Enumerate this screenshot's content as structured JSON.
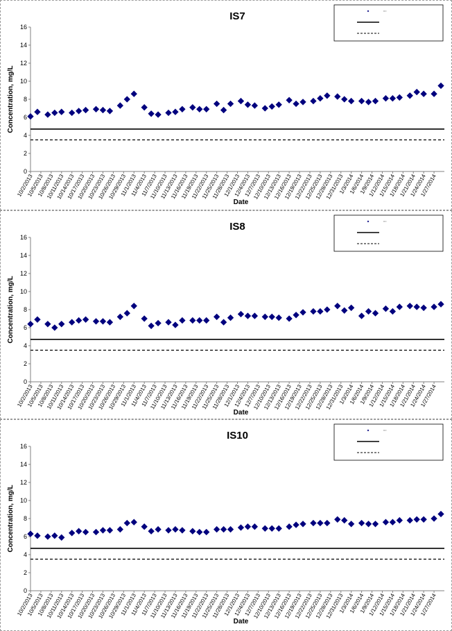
{
  "colors": {
    "marker": "#00007e",
    "line": "#000000",
    "axis": "#808080",
    "panel_border": "#9a9a9a"
  },
  "chart_data": [
    {
      "type": "scatter",
      "title": "IS7",
      "xlabel": "Date",
      "ylabel": "Concentration, mg/L",
      "ylim": [
        0,
        16
      ],
      "yticks": [
        "0",
        "2",
        "4",
        "6",
        "8",
        "10",
        "12",
        "14",
        "16"
      ],
      "xlim": [
        "2013-10-02",
        "2014-01-30"
      ],
      "xtick_labels": [
        "10/2/2013",
        "10/5/2013",
        "10/8/2013",
        "10/11/2013",
        "10/14/2013",
        "10/17/2013",
        "10/20/2013",
        "10/23/2013",
        "10/26/2013",
        "10/29/2013",
        "11/1/2013",
        "11/4/2013",
        "11/7/2013",
        "11/10/2013",
        "11/13/2013",
        "11/16/2013",
        "11/19/2013",
        "11/22/2013",
        "11/25/2013",
        "11/28/2013",
        "12/1/2013",
        "12/4/2013",
        "12/7/2013",
        "12/10/2013",
        "12/13/2013",
        "12/16/2013",
        "12/19/2013",
        "12/22/2013",
        "12/25/2013",
        "12/28/2013",
        "12/31/2013",
        "1/3/2014",
        "1/6/2014",
        "1/9/2014",
        "1/12/2014",
        "1/15/2014",
        "1/18/2014",
        "1/21/2014",
        "1/24/2014",
        "1/27/2014"
      ],
      "legend_position": "top-right",
      "legend": [
        "DO",
        "",
        ""
      ],
      "series": [
        {
          "kind": "marker",
          "x": [
            "2013-10-02",
            "2013-10-04",
            "2013-10-07",
            "2013-10-09",
            "2013-10-11",
            "2013-10-14",
            "2013-10-16",
            "2013-10-18",
            "2013-10-21",
            "2013-10-23",
            "2013-10-25",
            "2013-10-28",
            "2013-10-30",
            "2013-11-01",
            "2013-11-04",
            "2013-11-06",
            "2013-11-08",
            "2013-11-11",
            "2013-11-13",
            "2013-11-15",
            "2013-11-18",
            "2013-11-20",
            "2013-11-22",
            "2013-11-25",
            "2013-11-27",
            "2013-11-29",
            "2013-12-02",
            "2013-12-04",
            "2013-12-06",
            "2013-12-09",
            "2013-12-11",
            "2013-12-13",
            "2013-12-16",
            "2013-12-18",
            "2013-12-20",
            "2013-12-23",
            "2013-12-25",
            "2013-12-27",
            "2013-12-30",
            "2014-01-01",
            "2014-01-03",
            "2014-01-06",
            "2014-01-08",
            "2014-01-10",
            "2014-01-13",
            "2014-01-15",
            "2014-01-17",
            "2014-01-20",
            "2014-01-22",
            "2014-01-24",
            "2014-01-27",
            "2014-01-29"
          ],
          "y": [
            6.1,
            6.6,
            6.3,
            6.5,
            6.6,
            6.5,
            6.7,
            6.8,
            6.9,
            6.8,
            6.7,
            7.3,
            8.0,
            8.6,
            7.1,
            6.4,
            6.3,
            6.5,
            6.6,
            6.9,
            7.1,
            6.9,
            6.9,
            7.5,
            6.8,
            7.5,
            7.8,
            7.4,
            7.3,
            7.0,
            7.2,
            7.4,
            7.9,
            7.5,
            7.7,
            7.8,
            8.1,
            8.4,
            8.3,
            8.0,
            7.8,
            7.8,
            7.7,
            7.8,
            8.1,
            8.1,
            8.2,
            8.4,
            8.8,
            8.6,
            8.6,
            9.5
          ]
        },
        {
          "kind": "solid",
          "y": 4.7
        },
        {
          "kind": "dashed",
          "y": 3.5
        }
      ]
    },
    {
      "type": "scatter",
      "title": "IS8",
      "xlabel": "Date",
      "ylabel": "Concentration, mg/L",
      "ylim": [
        0,
        16
      ],
      "yticks": [
        "0",
        "2",
        "4",
        "6",
        "8",
        "10",
        "12",
        "14",
        "16"
      ],
      "xlim": [
        "2013-10-02",
        "2014-01-30"
      ],
      "xtick_labels": [
        "10/2/2013",
        "10/5/2013",
        "10/8/2013",
        "10/11/2013",
        "10/14/2013",
        "10/17/2013",
        "10/20/2013",
        "10/23/2013",
        "10/26/2013",
        "10/29/2013",
        "11/1/2013",
        "11/4/2013",
        "11/7/2013",
        "11/10/2013",
        "11/13/2013",
        "11/16/2013",
        "11/19/2013",
        "11/22/2013",
        "11/25/2013",
        "11/28/2013",
        "12/1/2013",
        "12/4/2013",
        "12/7/2013",
        "12/10/2013",
        "12/13/2013",
        "12/16/2013",
        "12/19/2013",
        "12/22/2013",
        "12/25/2013",
        "12/28/2013",
        "12/31/2013",
        "1/3/2014",
        "1/6/2014",
        "1/9/2014",
        "1/12/2014",
        "1/15/2014",
        "1/18/2014",
        "1/21/2014",
        "1/24/2014",
        "1/27/2014"
      ],
      "legend_position": "top-right",
      "legend": [
        "DO",
        "",
        ""
      ],
      "series": [
        {
          "kind": "marker",
          "x": [
            "2013-10-02",
            "2013-10-04",
            "2013-10-07",
            "2013-10-09",
            "2013-10-11",
            "2013-10-14",
            "2013-10-16",
            "2013-10-18",
            "2013-10-21",
            "2013-10-23",
            "2013-10-25",
            "2013-10-28",
            "2013-10-30",
            "2013-11-01",
            "2013-11-04",
            "2013-11-06",
            "2013-11-08",
            "2013-11-11",
            "2013-11-13",
            "2013-11-15",
            "2013-11-18",
            "2013-11-20",
            "2013-11-22",
            "2013-11-25",
            "2013-11-27",
            "2013-11-29",
            "2013-12-02",
            "2013-12-04",
            "2013-12-06",
            "2013-12-09",
            "2013-12-11",
            "2013-12-13",
            "2013-12-16",
            "2013-12-18",
            "2013-12-20",
            "2013-12-23",
            "2013-12-25",
            "2013-12-27",
            "2013-12-30",
            "2014-01-01",
            "2014-01-03",
            "2014-01-06",
            "2014-01-08",
            "2014-01-10",
            "2014-01-13",
            "2014-01-15",
            "2014-01-17",
            "2014-01-20",
            "2014-01-22",
            "2014-01-24",
            "2014-01-27",
            "2014-01-29"
          ],
          "y": [
            6.4,
            6.9,
            6.4,
            6.0,
            6.4,
            6.6,
            6.8,
            6.9,
            6.7,
            6.7,
            6.6,
            7.2,
            7.6,
            8.4,
            7.0,
            6.2,
            6.5,
            6.6,
            6.3,
            6.8,
            6.8,
            6.8,
            6.8,
            7.2,
            6.6,
            7.1,
            7.5,
            7.3,
            7.3,
            7.2,
            7.2,
            7.1,
            7.0,
            7.4,
            7.7,
            7.8,
            7.8,
            8.0,
            8.4,
            7.9,
            8.2,
            7.3,
            7.8,
            7.6,
            8.1,
            7.8,
            8.3,
            8.4,
            8.3,
            8.2,
            8.3,
            8.6
          ]
        },
        {
          "kind": "solid",
          "y": 4.7
        },
        {
          "kind": "dashed",
          "y": 3.5
        }
      ]
    },
    {
      "type": "scatter",
      "title": "IS10",
      "xlabel": "Date",
      "ylabel": "Concentration, mg/L",
      "ylim": [
        0,
        16
      ],
      "yticks": [
        "0",
        "2",
        "4",
        "6",
        "8",
        "10",
        "12",
        "14",
        "16"
      ],
      "xlim": [
        "2013-10-02",
        "2014-01-30"
      ],
      "xtick_labels": [
        "10/2/2013",
        "10/5/2013",
        "10/8/2013",
        "10/11/2013",
        "10/14/2013",
        "10/17/2013",
        "10/20/2013",
        "10/23/2013",
        "10/26/2013",
        "10/29/2013",
        "11/1/2013",
        "11/4/2013",
        "11/7/2013",
        "11/10/2013",
        "11/13/2013",
        "11/16/2013",
        "11/19/2013",
        "11/22/2013",
        "11/25/2013",
        "11/28/2013",
        "12/1/2013",
        "12/4/2013",
        "12/7/2013",
        "12/10/2013",
        "12/13/2013",
        "12/16/2013",
        "12/19/2013",
        "12/22/2013",
        "12/25/2013",
        "12/28/2013",
        "12/31/2013",
        "1/3/2014",
        "1/6/2014",
        "1/9/2014",
        "1/12/2014",
        "1/15/2014",
        "1/18/2014",
        "1/21/2014",
        "1/24/2014",
        "1/27/2014"
      ],
      "legend_position": "top-right",
      "legend": [
        "DO",
        "",
        ""
      ],
      "series": [
        {
          "kind": "marker",
          "x": [
            "2013-10-02",
            "2013-10-04",
            "2013-10-07",
            "2013-10-09",
            "2013-10-11",
            "2013-10-14",
            "2013-10-16",
            "2013-10-18",
            "2013-10-21",
            "2013-10-23",
            "2013-10-25",
            "2013-10-28",
            "2013-10-30",
            "2013-11-01",
            "2013-11-04",
            "2013-11-06",
            "2013-11-08",
            "2013-11-11",
            "2013-11-13",
            "2013-11-15",
            "2013-11-18",
            "2013-11-20",
            "2013-11-22",
            "2013-11-25",
            "2013-11-27",
            "2013-11-29",
            "2013-12-02",
            "2013-12-04",
            "2013-12-06",
            "2013-12-09",
            "2013-12-11",
            "2013-12-13",
            "2013-12-16",
            "2013-12-18",
            "2013-12-20",
            "2013-12-23",
            "2013-12-25",
            "2013-12-27",
            "2013-12-30",
            "2014-01-01",
            "2014-01-03",
            "2014-01-06",
            "2014-01-08",
            "2014-01-10",
            "2014-01-13",
            "2014-01-15",
            "2014-01-17",
            "2014-01-20",
            "2014-01-22",
            "2014-01-24",
            "2014-01-27",
            "2014-01-29"
          ],
          "y": [
            6.3,
            6.1,
            6.0,
            6.1,
            5.9,
            6.4,
            6.6,
            6.5,
            6.5,
            6.7,
            6.7,
            6.8,
            7.5,
            7.6,
            7.1,
            6.6,
            6.8,
            6.7,
            6.8,
            6.7,
            6.6,
            6.5,
            6.5,
            6.8,
            6.8,
            6.8,
            7.0,
            7.1,
            7.1,
            6.9,
            6.9,
            6.9,
            7.1,
            7.3,
            7.4,
            7.5,
            7.5,
            7.5,
            7.9,
            7.8,
            7.4,
            7.5,
            7.4,
            7.4,
            7.6,
            7.6,
            7.8,
            7.8,
            7.9,
            7.9,
            8.0,
            8.5
          ]
        },
        {
          "kind": "solid",
          "y": 4.7
        },
        {
          "kind": "dashed",
          "y": 3.5
        }
      ]
    }
  ]
}
